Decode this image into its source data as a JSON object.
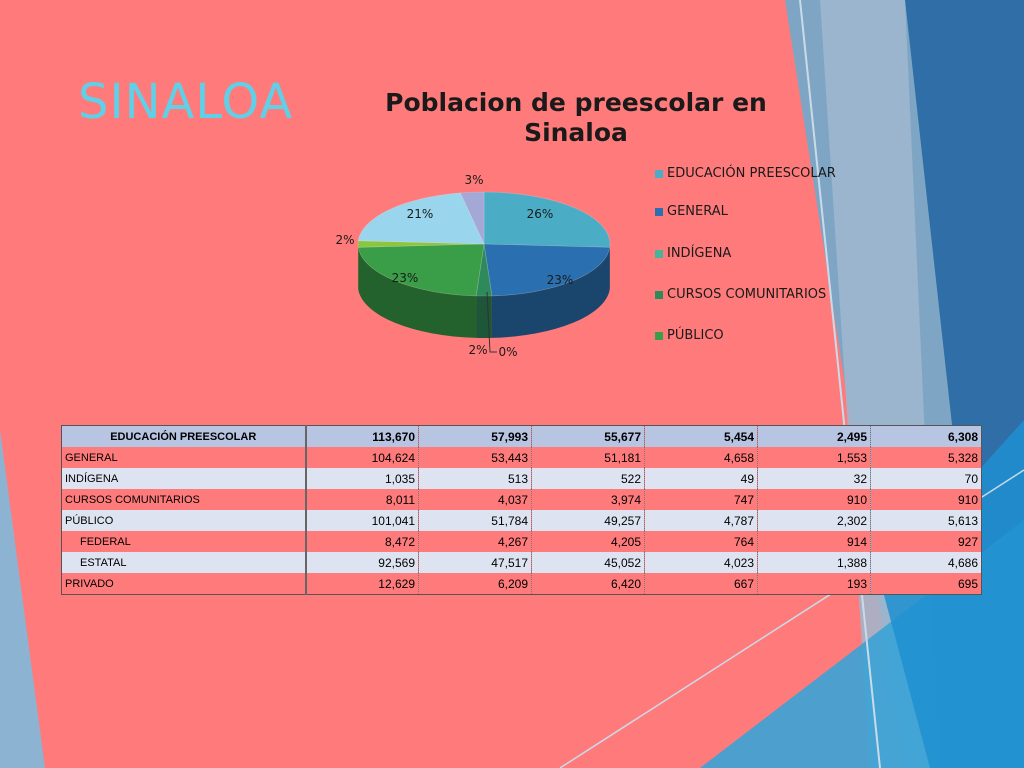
{
  "slide": {
    "title": "SINALOA"
  },
  "chart_data": {
    "type": "pie",
    "title": "Poblacion de preescolar en Sinaloa",
    "title_lines": [
      "Poblacion de preescolar en",
      "Sinaloa"
    ],
    "legend_position": "right",
    "slices": [
      {
        "name": "EDUCACIÓN PREESCOLAR",
        "value": 26,
        "label": "26%",
        "color": "#4bacc6"
      },
      {
        "name": "GENERAL",
        "value": 23,
        "label": "23%",
        "color": "#2a70b0"
      },
      {
        "name": "INDÍGENA",
        "value": 0,
        "label": "0%",
        "color": "#46b39a"
      },
      {
        "name": "CURSOS COMUNITARIOS",
        "value": 2,
        "label": "2%",
        "color": "#2e8a5a"
      },
      {
        "name": "PÚBLICO",
        "value": 23,
        "label": "23%",
        "color": "#3a9e48"
      },
      {
        "name": "",
        "value": 2,
        "label": "2%",
        "color": "#8cc63f"
      },
      {
        "name": "",
        "value": 21,
        "label": "21%",
        "color": "#99d6ee"
      },
      {
        "name": "",
        "value": 3,
        "label": "3%",
        "color": "#a3a8d6"
      }
    ],
    "legend": [
      {
        "label": "EDUCACIÓN PREESCOLAR",
        "color": "#4bacc6"
      },
      {
        "label": "GENERAL",
        "color": "#2a70b0"
      },
      {
        "label": "INDÍGENA",
        "color": "#46b39a"
      },
      {
        "label": "CURSOS COMUNITARIOS",
        "color": "#2e8a5a"
      },
      {
        "label": "PÚBLICO",
        "color": "#3a9e48"
      }
    ]
  },
  "table": {
    "header": {
      "label": "EDUCACIÓN PREESCOLAR",
      "values": [
        "113,670",
        "57,993",
        "55,677",
        "5,454",
        "2,495",
        "6,308"
      ]
    },
    "rows": [
      {
        "label": "GENERAL",
        "indent": false,
        "values": [
          "104,624",
          "53,443",
          "51,181",
          "4,658",
          "1,553",
          "5,328"
        ]
      },
      {
        "label": "INDÍGENA",
        "indent": false,
        "values": [
          "1,035",
          "513",
          "522",
          "49",
          "32",
          "70"
        ]
      },
      {
        "label": "CURSOS COMUNITARIOS",
        "indent": false,
        "values": [
          "8,011",
          "4,037",
          "3,974",
          "747",
          "910",
          "910"
        ]
      },
      {
        "label": "PÚBLICO",
        "indent": false,
        "values": [
          "101,041",
          "51,784",
          "49,257",
          "4,787",
          "2,302",
          "5,613"
        ]
      },
      {
        "label": "FEDERAL",
        "indent": true,
        "values": [
          "8,472",
          "4,267",
          "4,205",
          "764",
          "914",
          "927"
        ]
      },
      {
        "label": "ESTATAL",
        "indent": true,
        "values": [
          "92,569",
          "47,517",
          "45,052",
          "4,023",
          "1,388",
          "4,686"
        ]
      },
      {
        "label": "PRIVADO",
        "indent": false,
        "values": [
          "12,629",
          "6,209",
          "6,420",
          "667",
          "193",
          "695"
        ]
      }
    ]
  }
}
